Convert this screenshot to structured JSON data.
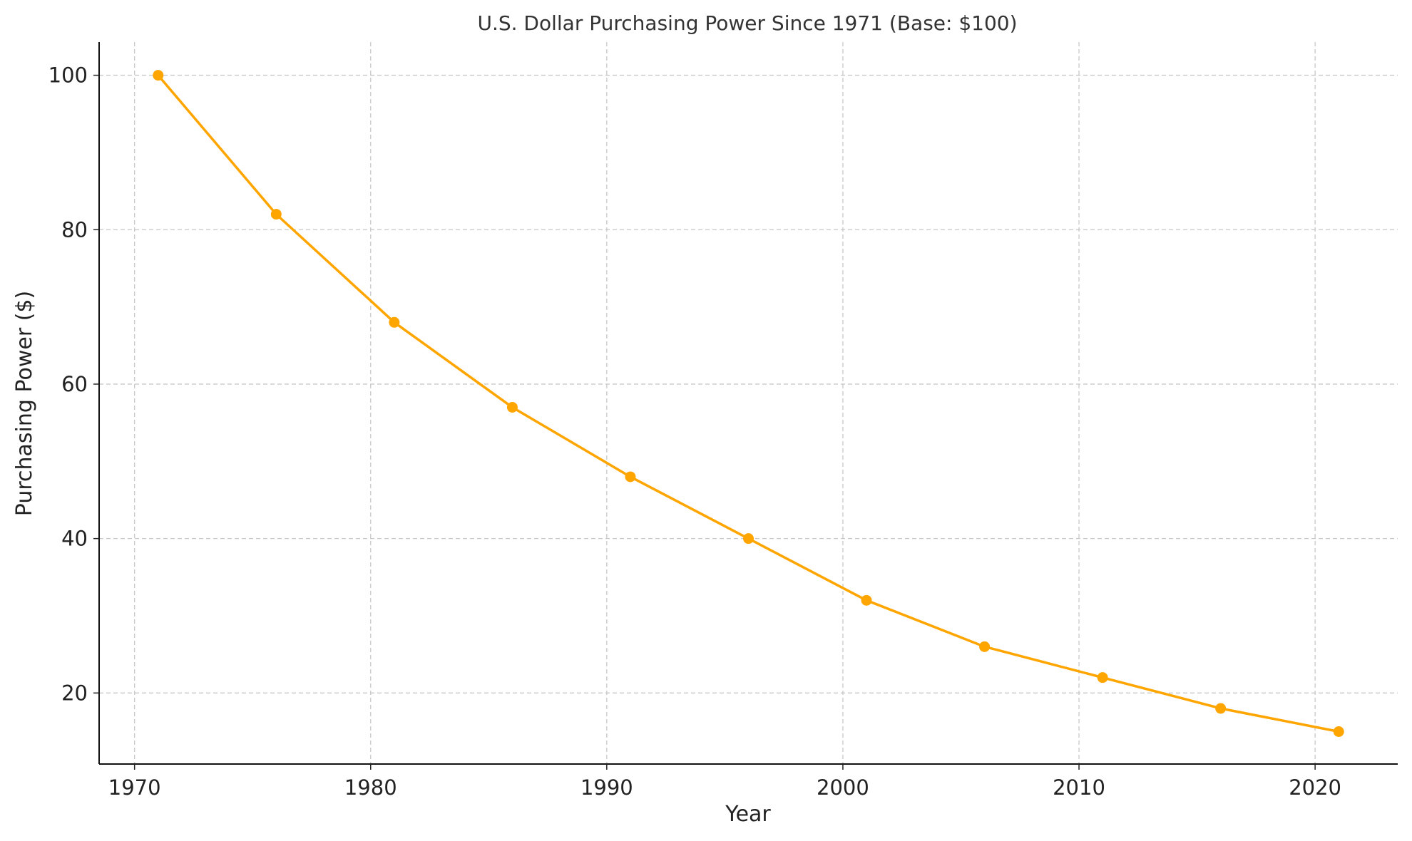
{
  "chart_data": {
    "type": "line",
    "title": "U.S. Dollar Purchasing Power Since 1971 (Base: $100)",
    "xlabel": "Year",
    "ylabel": "Purchasing Power ($)",
    "xlim": [
      1968.5,
      2023.5
    ],
    "ylim": [
      10.8,
      104.3
    ],
    "xticks": [
      1970,
      1980,
      1990,
      2000,
      2010,
      2020
    ],
    "yticks": [
      20,
      40,
      60,
      80,
      100
    ],
    "grid": true,
    "series": [
      {
        "color": "#FFA500",
        "marker": "circle",
        "x": [
          1971,
          1976,
          1981,
          1986,
          1991,
          1996,
          2001,
          2006,
          2011,
          2016,
          2021
        ],
        "y": [
          100,
          82,
          68,
          57,
          48,
          40,
          32,
          26,
          22,
          18,
          15
        ]
      }
    ]
  }
}
